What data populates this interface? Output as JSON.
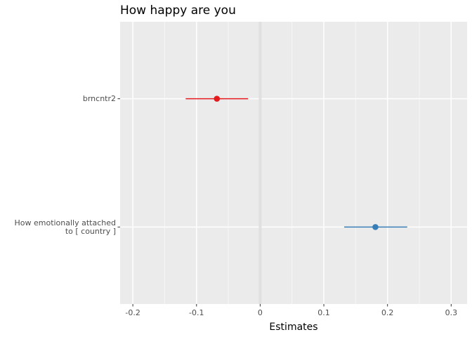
{
  "chart_data": {
    "type": "forest",
    "title": "How happy are you",
    "xlabel": "Estimates",
    "xlim": [
      -0.22,
      0.325
    ],
    "x_ticks": [
      -0.2,
      -0.1,
      0,
      0.1,
      0.2,
      0.3
    ],
    "x_tick_labels": [
      "-0.2",
      "-0.1",
      "0",
      "0.1",
      "0.2",
      "0.3"
    ],
    "reference_line": 0,
    "grid": true,
    "terms": [
      {
        "label_lines": [
          "How emotionally attached",
          "to [ country ]"
        ],
        "estimate": 0.181,
        "conf_low": 0.132,
        "conf_high": 0.231,
        "color": "#377eb8"
      },
      {
        "label_lines": [
          "brncntr2"
        ],
        "estimate": -0.068,
        "conf_low": -0.117,
        "conf_high": -0.019,
        "color": "#e41a1c"
      }
    ],
    "colors": {
      "panel_bg": "#ebebeb",
      "grid_major": "#ffffff",
      "grid_minor": "#f5f5f5",
      "reference_line": "#e0e0e0",
      "tick_text": "#4d4d4d",
      "tick_mark": "#333333"
    }
  }
}
